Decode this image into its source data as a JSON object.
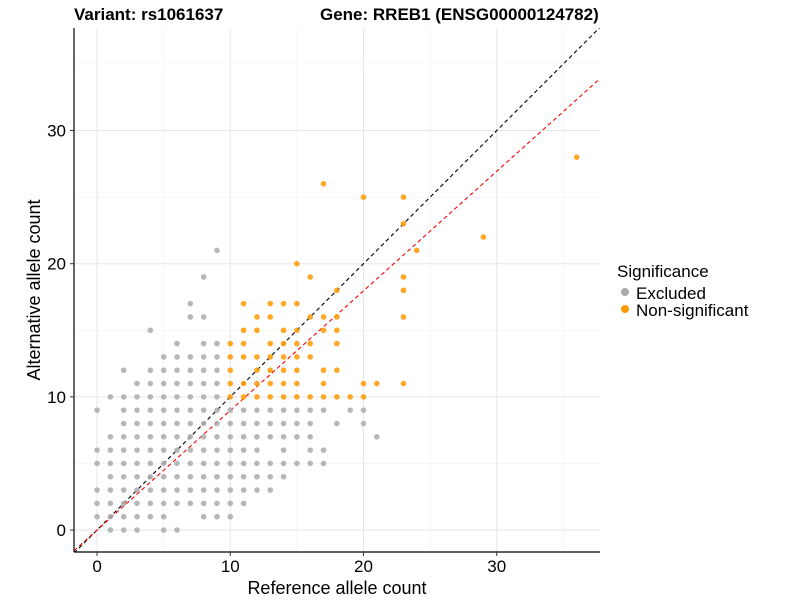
{
  "chart_data": {
    "type": "scatter",
    "title_left": "Variant: rs1061637",
    "title_right": "Gene: RREB1 (ENSG00000124782)",
    "xlabel": "Reference allele count",
    "ylabel": "Alternative allele count",
    "xlim": [
      -1.73,
      37.75
    ],
    "ylim": [
      -1.65,
      37.7
    ],
    "xticks": [
      0,
      10,
      20,
      30
    ],
    "yticks": [
      0,
      10,
      20,
      30
    ],
    "minor_grid": [
      5,
      15,
      25,
      35
    ],
    "grid": true,
    "legend": {
      "title": "Significance",
      "placement": "right"
    },
    "reference_lines": [
      {
        "name": "identity",
        "slope": 1.0,
        "intercept": 0,
        "color": "#000000",
        "dash": true
      },
      {
        "name": "fit",
        "slope": 0.898,
        "intercept": 0,
        "color": "#ff0000",
        "dash": true
      }
    ],
    "series": [
      {
        "name": "Excluded",
        "color": "#aaaaaa",
        "rows": {
          "21": [
            9
          ],
          "19": [
            8
          ],
          "17": [
            7
          ],
          "16": [
            7,
            8
          ],
          "15": [
            4
          ],
          "14": [
            6,
            8,
            9
          ],
          "13": [
            5,
            6,
            7,
            8,
            9
          ],
          "12": [
            2,
            4,
            5,
            6,
            7,
            8,
            9
          ],
          "11": [
            3,
            4,
            5,
            6,
            7,
            8,
            9
          ],
          "10": [
            1,
            2,
            3,
            4,
            5,
            6,
            7,
            8,
            9
          ],
          "9": [
            0,
            2,
            3,
            4,
            5,
            6,
            7,
            8,
            9,
            10,
            11,
            12,
            13,
            14,
            15,
            16,
            17,
            19,
            20
          ],
          "8": [
            2,
            3,
            4,
            5,
            6,
            7,
            8,
            9,
            10,
            11,
            12,
            13,
            14,
            15,
            16,
            18,
            20
          ],
          "7": [
            1,
            2,
            3,
            4,
            5,
            6,
            7,
            8,
            9,
            10,
            11,
            12,
            13,
            14,
            15,
            16,
            21
          ],
          "6": [
            0,
            1,
            2,
            3,
            4,
            5,
            6,
            7,
            8,
            9,
            10,
            11,
            12,
            14,
            16,
            17
          ],
          "5": [
            0,
            1,
            2,
            3,
            4,
            5,
            6,
            7,
            8,
            9,
            10,
            11,
            12,
            13,
            14,
            15,
            16,
            17
          ],
          "4": [
            1,
            2,
            3,
            4,
            5,
            6,
            7,
            8,
            9,
            10,
            11,
            12,
            13,
            14
          ],
          "3": [
            0,
            1,
            2,
            3,
            4,
            5,
            6,
            7,
            8,
            9,
            10,
            11,
            12,
            13
          ],
          "2": [
            0,
            1,
            2,
            3,
            4,
            5,
            6,
            7,
            8,
            9,
            10,
            11
          ],
          "1": [
            0,
            1,
            2,
            3,
            4,
            5,
            8,
            9,
            10
          ],
          "0": [
            1,
            2,
            3,
            5,
            6
          ]
        }
      },
      {
        "name": "Non-significant",
        "color": "#ff9900",
        "rows": {
          "28": [
            36
          ],
          "26": [
            17
          ],
          "25": [
            20,
            23
          ],
          "23": [
            23
          ],
          "22": [
            29
          ],
          "21": [
            24
          ],
          "20": [
            15
          ],
          "19": [
            16,
            23
          ],
          "18": [
            18,
            23
          ],
          "17": [
            11,
            13,
            14,
            15
          ],
          "16": [
            12,
            13,
            16,
            17,
            18,
            23
          ],
          "15": [
            11,
            12,
            14,
            15,
            17,
            18
          ],
          "14": [
            10,
            11,
            13,
            14,
            15,
            16,
            18
          ],
          "13": [
            10,
            11,
            12,
            13,
            14,
            15,
            16
          ],
          "12": [
            10,
            12,
            13,
            14,
            15,
            17,
            18
          ],
          "11": [
            10,
            11,
            12,
            13,
            14,
            15,
            17,
            20,
            21,
            23
          ],
          "10": [
            10,
            11,
            12,
            13,
            14,
            15,
            16,
            17,
            18,
            19,
            20
          ]
        }
      }
    ]
  }
}
